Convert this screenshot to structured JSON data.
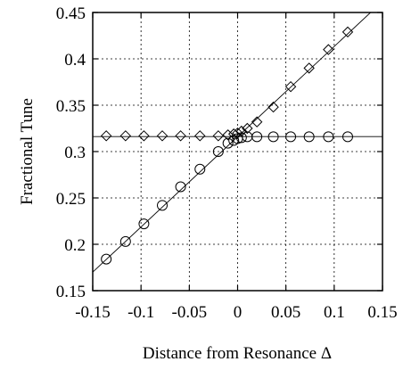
{
  "chart_data": {
    "type": "scatter",
    "title": "",
    "xlabel": "Distance from Resonance Δ",
    "ylabel": "Fractional Tune",
    "xlim": [
      -0.15,
      0.15
    ],
    "ylim": [
      0.15,
      0.45
    ],
    "x_ticks": [
      -0.15,
      -0.1,
      -0.05,
      0,
      0.05,
      0.1,
      0.15
    ],
    "x_tick_labels": [
      "-0.15",
      "-0.1",
      "-0.05",
      "0",
      "0.05",
      "0.1",
      "0.15"
    ],
    "y_ticks": [
      0.15,
      0.2,
      0.25,
      0.3,
      0.35,
      0.4,
      0.45
    ],
    "y_tick_labels": [
      "0.15",
      "0.2",
      "0.25",
      "0.3",
      "0.35",
      "0.4",
      "0.45"
    ],
    "grid": true,
    "series": [
      {
        "marker": "diamond",
        "points": [
          [
            -0.136,
            0.317
          ],
          [
            -0.116,
            0.317
          ],
          [
            -0.097,
            0.317
          ],
          [
            -0.078,
            0.317
          ],
          [
            -0.059,
            0.317
          ],
          [
            -0.039,
            0.317
          ],
          [
            -0.02,
            0.317
          ],
          [
            -0.01,
            0.318
          ],
          [
            -0.004,
            0.319
          ],
          [
            0.0,
            0.32
          ],
          [
            0.004,
            0.322
          ],
          [
            0.01,
            0.325
          ],
          [
            0.02,
            0.332
          ],
          [
            0.037,
            0.348
          ],
          [
            0.055,
            0.37
          ],
          [
            0.074,
            0.39
          ],
          [
            0.094,
            0.41
          ],
          [
            0.114,
            0.429
          ]
        ]
      },
      {
        "marker": "circle",
        "points": [
          [
            -0.136,
            0.184
          ],
          [
            -0.116,
            0.203
          ],
          [
            -0.097,
            0.222
          ],
          [
            -0.078,
            0.242
          ],
          [
            -0.059,
            0.262
          ],
          [
            -0.039,
            0.281
          ],
          [
            -0.02,
            0.3
          ],
          [
            -0.01,
            0.309
          ],
          [
            -0.004,
            0.312
          ],
          [
            0.0,
            0.314
          ],
          [
            0.004,
            0.315
          ],
          [
            0.01,
            0.316
          ],
          [
            0.02,
            0.316
          ],
          [
            0.037,
            0.316
          ],
          [
            0.055,
            0.316
          ],
          [
            0.074,
            0.316
          ],
          [
            0.094,
            0.316
          ],
          [
            0.114,
            0.316
          ]
        ]
      }
    ],
    "reference_lines": [
      {
        "type": "diagonal",
        "from": [
          -0.15,
          0.17
        ],
        "to": [
          0.15,
          0.462
        ]
      },
      {
        "type": "horizontal",
        "y": 0.3162
      }
    ]
  }
}
